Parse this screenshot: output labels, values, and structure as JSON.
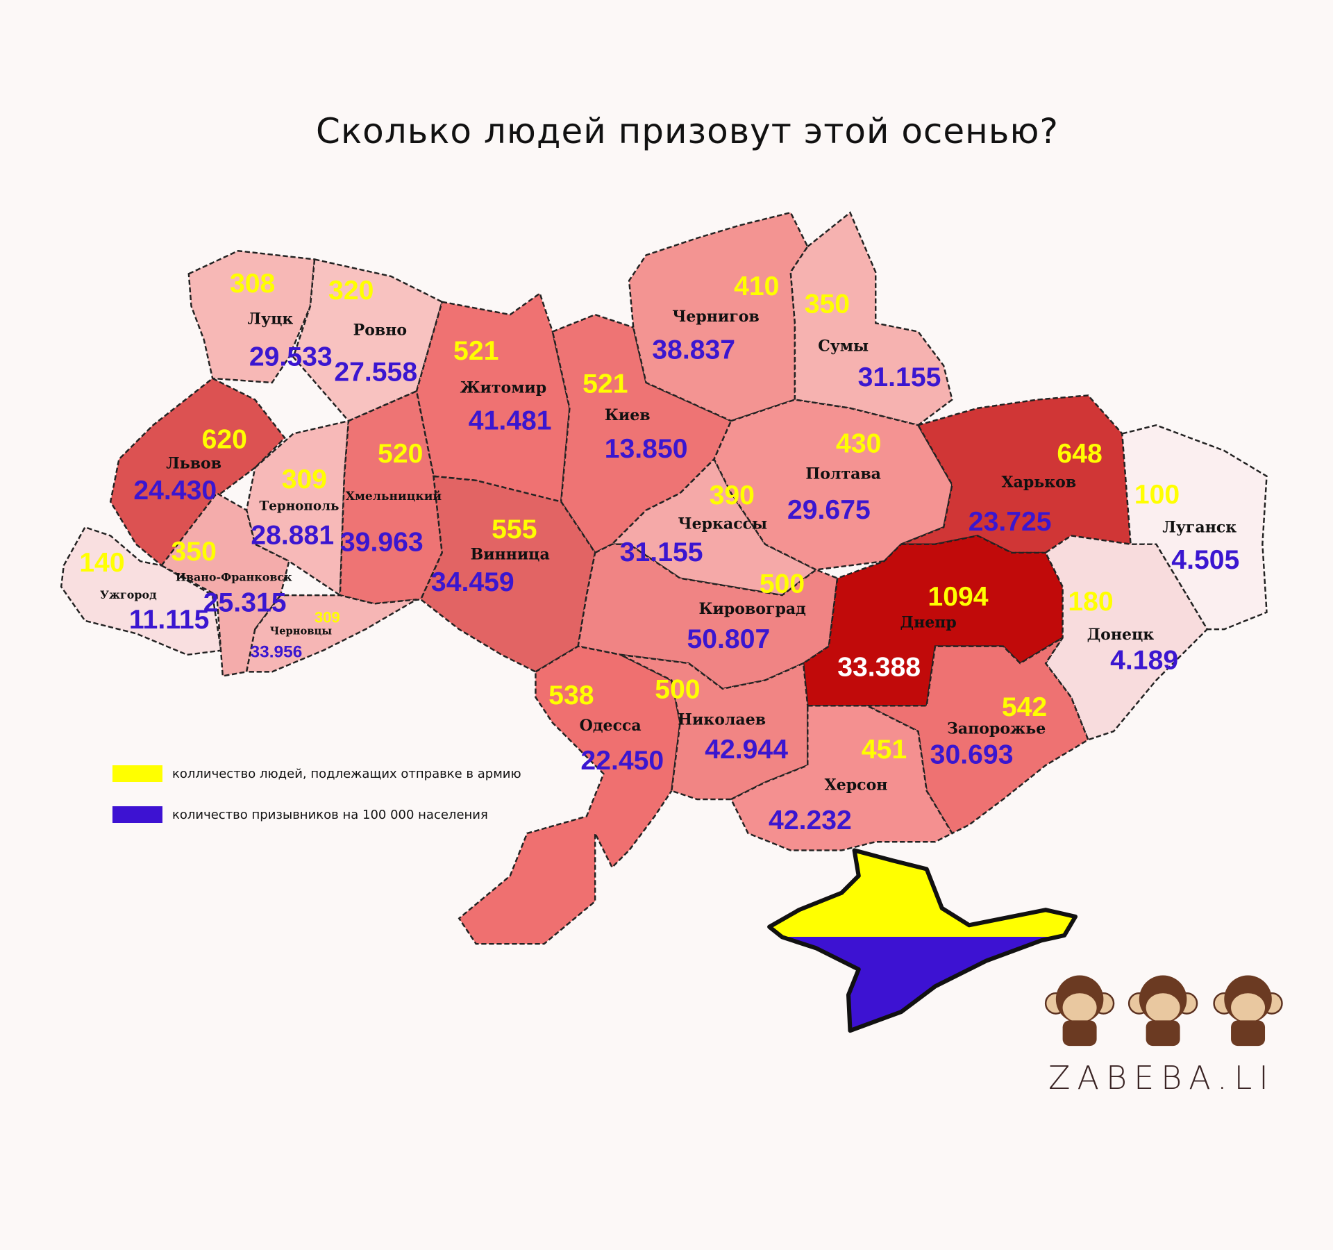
{
  "title": "Сколько людей призовут этой осенью?",
  "colors": {
    "conscripts": "#ffff00",
    "per_100k": "#3a16d0",
    "border": "#111111"
  },
  "legend": [
    {
      "label": "колличество людей, подлежащих отправке в армию",
      "color": "#ffff00"
    },
    {
      "label": "количество призывников на 100 000 населения",
      "color": "#3d12d2"
    }
  ],
  "regions": [
    {
      "name": "Луцк",
      "conscripts": "308",
      "per_100k": "29.533",
      "fill": "#f7b8b6"
    },
    {
      "name": "Ровно",
      "conscripts": "320",
      "per_100k": "27.558",
      "fill": "#f8c2c0"
    },
    {
      "name": "Житомир",
      "conscripts": "521",
      "per_100k": "41.481",
      "fill": "#ef7272"
    },
    {
      "name": "Киев",
      "conscripts": "521",
      "per_100k": "13.850",
      "fill": "#ee7474"
    },
    {
      "name": "Чернигов",
      "conscripts": "410",
      "per_100k": "38.837",
      "fill": "#f39492"
    },
    {
      "name": "Сумы",
      "conscripts": "350",
      "per_100k": "31.155",
      "fill": "#f6b2b0"
    },
    {
      "name": "Львов",
      "conscripts": "620",
      "per_100k": "24.430",
      "fill": "#dc5252"
    },
    {
      "name": "Тернополь",
      "conscripts": "309",
      "per_100k": "28.881",
      "fill": "#f7b9b8"
    },
    {
      "name": "Хмельницкий",
      "conscripts": "520",
      "per_100k": "39.963",
      "fill": "#ee7474"
    },
    {
      "name": "Винница",
      "conscripts": "555",
      "per_100k": "34.459",
      "fill": "#e26464"
    },
    {
      "name": "Черкассы",
      "conscripts": "390",
      "per_100k": "31.155",
      "fill": "#f5a9a8"
    },
    {
      "name": "Полтава",
      "conscripts": "430",
      "per_100k": "29.675",
      "fill": "#f49392"
    },
    {
      "name": "Харьков",
      "conscripts": "648",
      "per_100k": "23.725",
      "fill": "#d03636"
    },
    {
      "name": "Луганск",
      "conscripts": "100",
      "per_100k": "4.505",
      "fill": "#fbeff0"
    },
    {
      "name": "Ужгород",
      "conscripts": "140",
      "per_100k": "11.115",
      "fill": "#f9dfe0"
    },
    {
      "name": "Ивано-Франковск",
      "conscripts": "350",
      "per_100k": "25.315",
      "fill": "#f4acab"
    },
    {
      "name": "Черновцы",
      "conscripts": "309",
      "per_100k": "33.956",
      "fill": "#f6b6b5"
    },
    {
      "name": "Кировоград",
      "conscripts": "500",
      "per_100k": "50.807",
      "fill": "#f08484"
    },
    {
      "name": "Днепр",
      "conscripts": "1094",
      "per_100k": "33.388",
      "fill": "#c10a0a"
    },
    {
      "name": "Донецк",
      "conscripts": "180",
      "per_100k": "4.189",
      "fill": "#f8dcdd"
    },
    {
      "name": "Одесса",
      "conscripts": "538",
      "per_100k": "22.450",
      "fill": "#ef7070"
    },
    {
      "name": "Николаев",
      "conscripts": "500",
      "per_100k": "42.944",
      "fill": "#f18584"
    },
    {
      "name": "Запорожье",
      "conscripts": "542",
      "per_100k": "30.693",
      "fill": "#ee7272"
    },
    {
      "name": "Херсон",
      "conscripts": "451",
      "per_100k": "42.232",
      "fill": "#f49090"
    }
  ],
  "crimea": {
    "top_color": "#ffff00",
    "bottom_color": "#3d12d2"
  },
  "brand": {
    "logo_text": "ZABEBA.LI"
  }
}
